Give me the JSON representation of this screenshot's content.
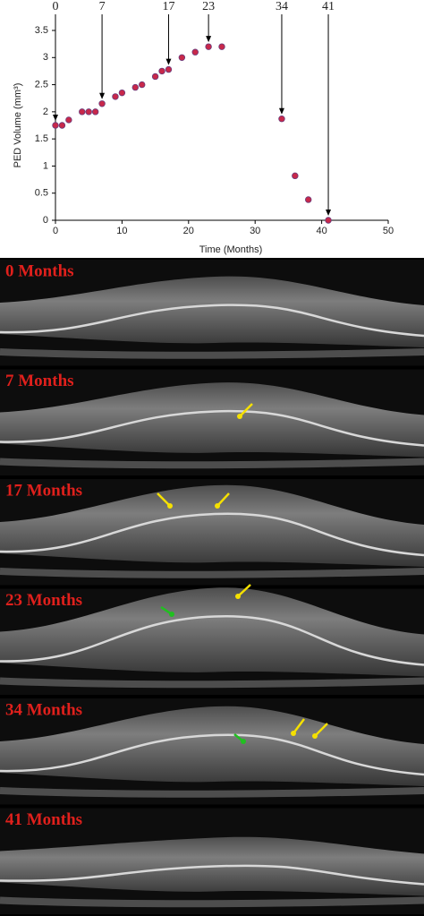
{
  "chart_data": {
    "type": "scatter",
    "xlabel": "Time (Months)",
    "ylabel": "PED Volume (mm³)",
    "series": [
      {
        "color": "#c8284a",
        "x": [
          0,
          1,
          2,
          4,
          5,
          6,
          7,
          9,
          10,
          12,
          13,
          15,
          16,
          17,
          19,
          21,
          23,
          25,
          34,
          36,
          38,
          41
        ],
        "values": [
          1.75,
          1.75,
          1.85,
          2.0,
          2.0,
          2.0,
          2.15,
          2.28,
          2.35,
          2.45,
          2.5,
          2.65,
          2.75,
          2.78,
          3.0,
          3.1,
          3.2,
          3.2,
          1.87,
          0.82,
          0.38,
          0.0
        ]
      }
    ],
    "xlim": [
      0,
      50
    ],
    "xticks": [
      0,
      10,
      20,
      30,
      40,
      50
    ],
    "ylim": [
      0,
      3.5
    ],
    "yticks": [
      0,
      0.5,
      1,
      1.5,
      2,
      2.5,
      3,
      3.5
    ],
    "annotations": [
      {
        "text": "0",
        "x": 0
      },
      {
        "text": "7",
        "x": 7
      },
      {
        "text": "17",
        "x": 17
      },
      {
        "text": "23",
        "x": 23
      },
      {
        "text": "34",
        "x": 34
      },
      {
        "text": "41",
        "x": 41
      }
    ]
  },
  "panels": [
    {
      "label": "0 Months"
    },
    {
      "label": "7 Months"
    },
    {
      "label": "17 Months"
    },
    {
      "label": "23 Months"
    },
    {
      "label": "34 Months"
    },
    {
      "label": "41 Months"
    }
  ]
}
